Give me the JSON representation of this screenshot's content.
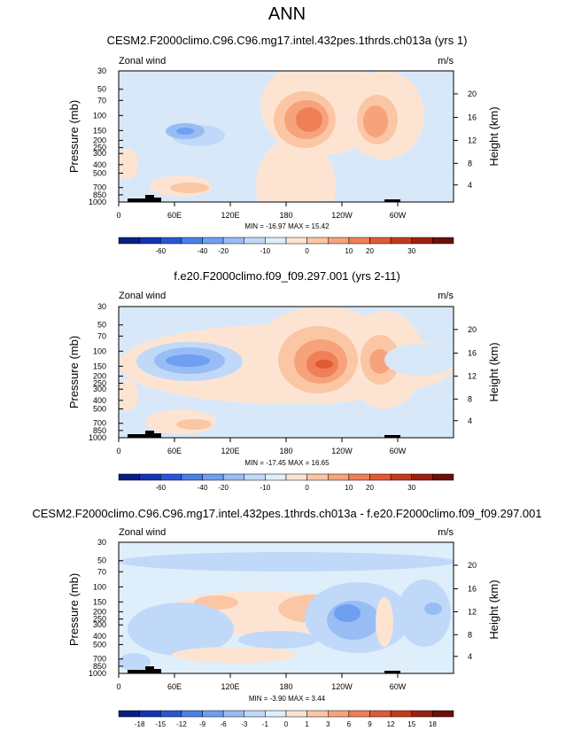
{
  "page_title": "ANN",
  "chart_data": [
    {
      "type": "heatmap",
      "title": "CESM2.F2000climo.C96.C96.mg17.intel.432pes.1thrds.ch013a (yrs 1)",
      "variable_label": "Zonal wind",
      "units": "m/s",
      "ylabel": "Pressure (mb)",
      "ylabel_right": "Height (km)",
      "x_ticks": [
        "0",
        "60E",
        "120E",
        "180",
        "120W",
        "60W"
      ],
      "y_ticks": [
        "30",
        "50",
        "70",
        "100",
        "150",
        "200",
        "250",
        "300",
        "400",
        "500",
        "700",
        "850",
        "1000"
      ],
      "height_ticks": [
        "20",
        "16",
        "12",
        "8",
        "4"
      ],
      "stats_text": "MIN = -16.97  MAX =  15.42",
      "colorbar_labels": [
        "-60",
        "-40",
        "-20",
        "-10",
        "0",
        "10",
        "20",
        "30"
      ],
      "colorbar_colors": [
        "#0a1e82",
        "#1434b4",
        "#2a56d6",
        "#4a7fe6",
        "#6f9ff0",
        "#98bdf5",
        "#c1d9f8",
        "#dfeefb",
        "#fde4d2",
        "#fbc6a4",
        "#f6a37c",
        "#ef7f56",
        "#e05a34",
        "#c53a1c",
        "#9c2010",
        "#6e0f08"
      ],
      "background_color": "#d8e8f9",
      "blobs": [
        {
          "x": 200,
          "y": 130,
          "rx": 45,
          "ry": 55,
          "color": "#fde4d2"
        },
        {
          "x": 230,
          "y": 40,
          "rx": 70,
          "ry": 55,
          "color": "#fde4d2"
        },
        {
          "x": 300,
          "y": 50,
          "rx": 45,
          "ry": 50,
          "color": "#fde4d2"
        },
        {
          "x": 210,
          "y": 55,
          "rx": 35,
          "ry": 32,
          "color": "#fbc6a4"
        },
        {
          "x": 292,
          "y": 55,
          "rx": 23,
          "ry": 28,
          "color": "#fbc6a4"
        },
        {
          "x": 212,
          "y": 55,
          "rx": 25,
          "ry": 22,
          "color": "#f6a37c"
        },
        {
          "x": 290,
          "y": 57,
          "rx": 14,
          "ry": 18,
          "color": "#f6a37c"
        },
        {
          "x": 215,
          "y": 55,
          "rx": 15,
          "ry": 14,
          "color": "#ef7f56"
        },
        {
          "x": 90,
          "y": 73,
          "rx": 30,
          "ry": 12,
          "color": "#c1d9f8"
        },
        {
          "x": 75,
          "y": 68,
          "rx": 22,
          "ry": 9,
          "color": "#98bdf5"
        },
        {
          "x": 75,
          "y": 68,
          "rx": 10,
          "ry": 4,
          "color": "#6f9ff0"
        },
        {
          "x": 70,
          "y": 130,
          "rx": 35,
          "ry": 12,
          "color": "#fde4d2"
        },
        {
          "x": 80,
          "y": 132,
          "rx": 22,
          "ry": 6,
          "color": "#fbc6a4"
        },
        {
          "x": 10,
          "y": 105,
          "rx": 12,
          "ry": 18,
          "color": "#fde4d2"
        }
      ],
      "terrain": [
        {
          "x": 10,
          "y": 144,
          "w": 20,
          "h": 4
        },
        {
          "x": 30,
          "y": 140,
          "w": 10,
          "h": 8
        },
        {
          "x": 40,
          "y": 143,
          "w": 8,
          "h": 5
        },
        {
          "x": 300,
          "y": 145,
          "w": 18,
          "h": 3
        }
      ]
    },
    {
      "type": "heatmap",
      "title": "f.e20.F2000climo.f09_f09.297.001 (yrs 2-11)",
      "variable_label": "Zonal wind",
      "units": "m/s",
      "ylabel": "Pressure (mb)",
      "ylabel_right": "Height (km)",
      "x_ticks": [
        "0",
        "60E",
        "120E",
        "180",
        "120W",
        "60W"
      ],
      "y_ticks": [
        "30",
        "50",
        "70",
        "100",
        "150",
        "200",
        "250",
        "300",
        "400",
        "500",
        "700",
        "850",
        "1000"
      ],
      "height_ticks": [
        "20",
        "16",
        "12",
        "8",
        "4"
      ],
      "stats_text": "MIN = -17.45  MAX =  16.65",
      "colorbar_labels": [
        "-60",
        "-40",
        "-20",
        "-10",
        "0",
        "10",
        "20",
        "30"
      ],
      "colorbar_colors": [
        "#0a1e82",
        "#1434b4",
        "#2a56d6",
        "#4a7fe6",
        "#6f9ff0",
        "#98bdf5",
        "#c1d9f8",
        "#dfeefb",
        "#fde4d2",
        "#fbc6a4",
        "#f6a37c",
        "#ef7f56",
        "#e05a34",
        "#c53a1c",
        "#9c2010",
        "#6e0f08"
      ],
      "background_color": "#d8e8f9",
      "blobs": [
        {
          "x": 190,
          "y": 65,
          "rx": 190,
          "ry": 45,
          "color": "#fde4d2"
        },
        {
          "x": 230,
          "y": 55,
          "rx": 80,
          "ry": 55,
          "color": "#fde4d2"
        },
        {
          "x": 300,
          "y": 60,
          "rx": 45,
          "ry": 55,
          "color": "#fde4d2"
        },
        {
          "x": 225,
          "y": 60,
          "rx": 45,
          "ry": 38,
          "color": "#fbc6a4"
        },
        {
          "x": 295,
          "y": 60,
          "rx": 22,
          "ry": 28,
          "color": "#fbc6a4"
        },
        {
          "x": 228,
          "y": 62,
          "rx": 30,
          "ry": 25,
          "color": "#f6a37c"
        },
        {
          "x": 295,
          "y": 62,
          "rx": 12,
          "ry": 14,
          "color": "#f6a37c"
        },
        {
          "x": 230,
          "y": 65,
          "rx": 18,
          "ry": 15,
          "color": "#ef7f56"
        },
        {
          "x": 232,
          "y": 65,
          "rx": 10,
          "ry": 5,
          "color": "#e05a34"
        },
        {
          "x": 340,
          "y": 60,
          "rx": 40,
          "ry": 18,
          "color": "#d8e8f9"
        },
        {
          "x": 80,
          "y": 62,
          "rx": 60,
          "ry": 22,
          "color": "#c1d9f8"
        },
        {
          "x": 80,
          "y": 61,
          "rx": 40,
          "ry": 15,
          "color": "#98bdf5"
        },
        {
          "x": 78,
          "y": 61,
          "rx": 25,
          "ry": 7,
          "color": "#6f9ff0"
        },
        {
          "x": 70,
          "y": 130,
          "rx": 40,
          "ry": 14,
          "color": "#fde4d2"
        },
        {
          "x": 85,
          "y": 133,
          "rx": 20,
          "ry": 6,
          "color": "#fbc6a4"
        },
        {
          "x": 10,
          "y": 100,
          "rx": 12,
          "ry": 18,
          "color": "#fde4d2"
        }
      ],
      "terrain": [
        {
          "x": 10,
          "y": 144,
          "w": 20,
          "h": 4
        },
        {
          "x": 30,
          "y": 140,
          "w": 10,
          "h": 8
        },
        {
          "x": 40,
          "y": 143,
          "w": 8,
          "h": 5
        },
        {
          "x": 300,
          "y": 145,
          "w": 18,
          "h": 3
        }
      ]
    },
    {
      "type": "heatmap",
      "title": "CESM2.F2000climo.C96.C96.mg17.intel.432pes.1thrds.ch013a - f.e20.F2000climo.f09_f09.297.001",
      "variable_label": "Zonal wind",
      "units": "m/s",
      "ylabel": "Pressure (mb)",
      "ylabel_right": "Height (km)",
      "x_ticks": [
        "0",
        "60E",
        "120E",
        "180",
        "120W",
        "60W"
      ],
      "y_ticks": [
        "30",
        "50",
        "70",
        "100",
        "150",
        "200",
        "250",
        "300",
        "400",
        "500",
        "700",
        "850",
        "1000"
      ],
      "height_ticks": [
        "20",
        "16",
        "12",
        "8",
        "4"
      ],
      "stats_text": "MIN = -3.90  MAX =  3.44",
      "colorbar_labels": [
        "-18",
        "-15",
        "-12",
        "-9",
        "-6",
        "-3",
        "-1",
        "0",
        "1",
        "3",
        "6",
        "9",
        "12",
        "15",
        "18"
      ],
      "colorbar_colors": [
        "#0a1e82",
        "#1434b4",
        "#2a56d6",
        "#4a7fe6",
        "#6f9ff0",
        "#98bdf5",
        "#c1d9f8",
        "#dfeefb",
        "#fde4d2",
        "#fbc6a4",
        "#f6a37c",
        "#ef7f56",
        "#e05a34",
        "#c53a1c",
        "#9c2010",
        "#6e0f08"
      ],
      "background_color": "#dfeefb",
      "blobs": [
        {
          "x": 190,
          "y": 22,
          "rx": 190,
          "ry": 11,
          "color": "#c1d9f8"
        },
        {
          "x": 160,
          "y": 80,
          "rx": 110,
          "ry": 25,
          "color": "#fde4d2"
        },
        {
          "x": 220,
          "y": 75,
          "rx": 40,
          "ry": 16,
          "color": "#fbc6a4"
        },
        {
          "x": 110,
          "y": 68,
          "rx": 25,
          "ry": 8,
          "color": "#fbc6a4"
        },
        {
          "x": 70,
          "y": 98,
          "rx": 60,
          "ry": 30,
          "color": "#c1d9f8"
        },
        {
          "x": 270,
          "y": 85,
          "rx": 60,
          "ry": 40,
          "color": "#c1d9f8"
        },
        {
          "x": 265,
          "y": 88,
          "rx": 30,
          "ry": 22,
          "color": "#98bdf5"
        },
        {
          "x": 258,
          "y": 80,
          "rx": 15,
          "ry": 10,
          "color": "#6f9ff0"
        },
        {
          "x": 345,
          "y": 80,
          "rx": 30,
          "ry": 38,
          "color": "#c1d9f8"
        },
        {
          "x": 355,
          "y": 75,
          "rx": 10,
          "ry": 7,
          "color": "#98bdf5"
        },
        {
          "x": 180,
          "y": 110,
          "rx": 45,
          "ry": 10,
          "color": "#c1d9f8"
        },
        {
          "x": 130,
          "y": 127,
          "rx": 70,
          "ry": 9,
          "color": "#fde4d2"
        },
        {
          "x": 300,
          "y": 90,
          "rx": 10,
          "ry": 28,
          "color": "#fde4d2"
        },
        {
          "x": 18,
          "y": 135,
          "rx": 18,
          "ry": 10,
          "color": "#c1d9f8"
        }
      ],
      "terrain": [
        {
          "x": 10,
          "y": 144,
          "w": 20,
          "h": 4
        },
        {
          "x": 30,
          "y": 140,
          "w": 10,
          "h": 8
        },
        {
          "x": 40,
          "y": 143,
          "w": 8,
          "h": 5
        },
        {
          "x": 300,
          "y": 145,
          "w": 18,
          "h": 3
        }
      ]
    }
  ]
}
